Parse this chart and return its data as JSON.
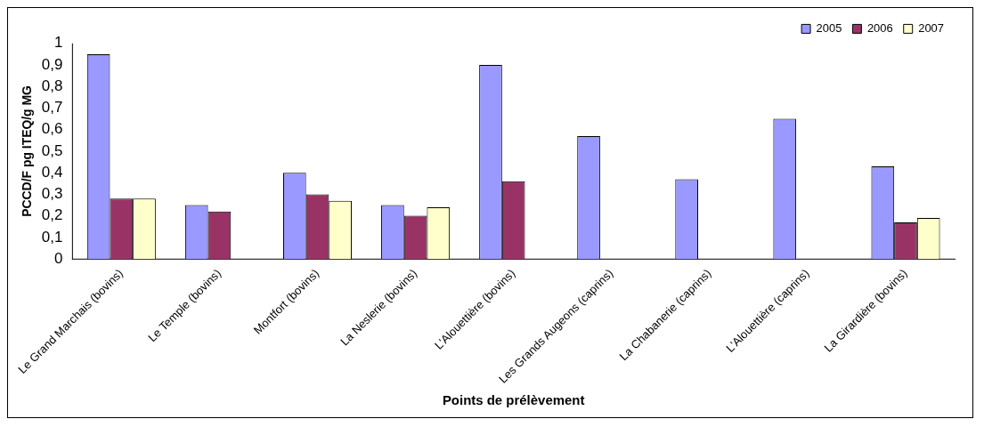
{
  "chart_data": {
    "type": "bar",
    "categories": [
      "Le Grand Marchais (bovins)",
      "Le Temple (bovins)",
      "Montfort (bovins)",
      "La Neslerie (bovins)",
      "L'Alouettière (bovins)",
      "Les Grands Augeons (caprins)",
      "La Chabanerie (caprins)",
      "L'Alouettière (caprins)",
      "La Girardière (bovins)"
    ],
    "series": [
      {
        "name": "2005",
        "color": "#9999ff",
        "values": [
          0.95,
          0.25,
          0.4,
          0.25,
          0.9,
          0.57,
          0.37,
          0.65,
          0.43
        ]
      },
      {
        "name": "2006",
        "color": "#993366",
        "values": [
          0.28,
          0.22,
          0.3,
          0.2,
          0.36,
          null,
          null,
          null,
          0.17
        ]
      },
      {
        "name": "2007",
        "color": "#ffffcc",
        "values": [
          0.28,
          null,
          0.27,
          0.24,
          null,
          null,
          null,
          null,
          0.19
        ]
      }
    ],
    "xlabel": "Points de prélèvement",
    "ylabel": "PCCD/F pg ITEQ/g MG",
    "ylim": [
      0,
      1
    ],
    "yticks": [
      0,
      {
        "value": 0.1,
        "label": "0,1"
      },
      {
        "value": 0.2,
        "label": "0,2"
      },
      {
        "value": 0.3,
        "label": "0,3"
      },
      {
        "value": 0.4,
        "label": "0,4"
      },
      {
        "value": 0.5,
        "label": "0,5"
      },
      {
        "value": 0.6,
        "label": "0,6"
      },
      {
        "value": 0.7,
        "label": "0,7"
      },
      {
        "value": 0.8,
        "label": "0,8"
      },
      {
        "value": 0.9,
        "label": "0,9"
      },
      1
    ],
    "grid": false,
    "legend": "top right"
  }
}
